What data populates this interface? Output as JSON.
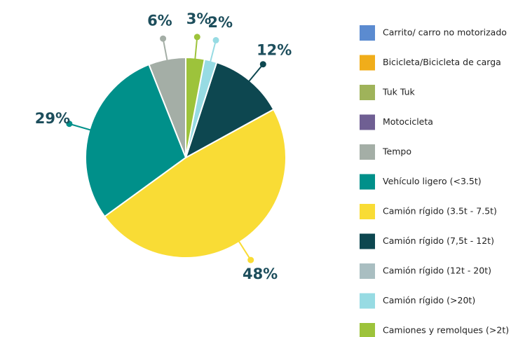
{
  "chart_data": {
    "type": "pie",
    "categories": [
      "Carrito/ carro no motorizado",
      "Bicicleta/Bicicleta de carga",
      "Tuk Tuk",
      "Motocicleta",
      "Tempo",
      "Vehículo ligero (<3.5t)",
      "Camión rígido (3.5t - 7.5t)",
      "Camión rígido (7,5t - 12t)",
      "Camión rígido (12t - 20t)",
      "Camión rígido (>20t)",
      "Camiones y remolques (>2t)"
    ],
    "values": [
      0,
      0,
      0,
      0,
      6,
      29,
      48,
      12,
      0,
      2,
      3
    ],
    "value_labels": [
      null,
      null,
      null,
      null,
      "6%",
      "29%",
      "48%",
      "12%",
      null,
      "2%",
      "3%"
    ],
    "colors": [
      "#5b8bd0",
      "#f0ad1a",
      "#9fb35a",
      "#6f5f93",
      "#a4aea6",
      "#00908a",
      "#f9dc35",
      "#0d4750",
      "#a9bec1",
      "#97dbe3",
      "#9dc33b"
    ],
    "legend": "right"
  }
}
